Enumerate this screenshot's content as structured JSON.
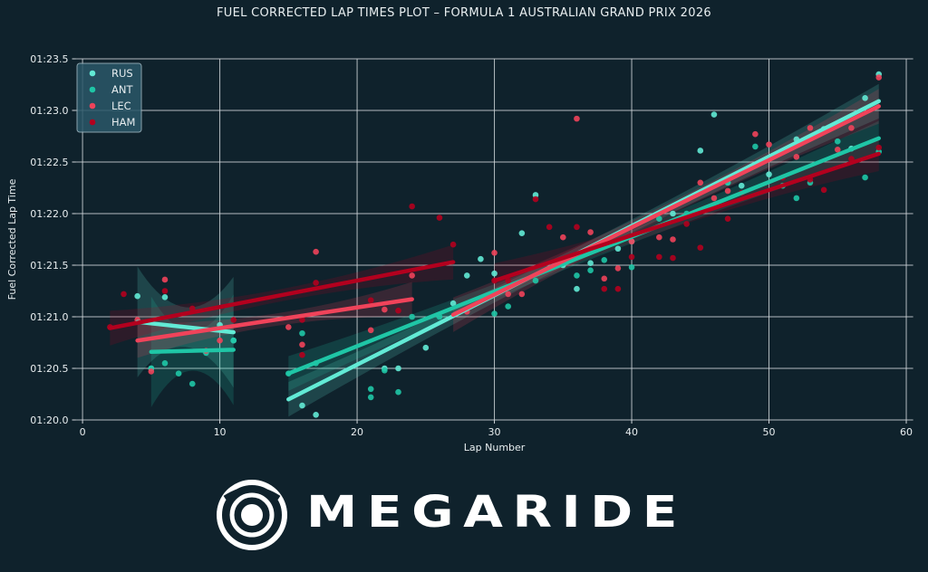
{
  "chart_data": {
    "type": "scatter",
    "title": "FUEL CORRECTED LAP TIMES PLOT – FORMULA 1 AUSTRALIAN GRAND PRIX 2026",
    "xlabel": "Lap Number",
    "ylabel": "Fuel Corrected Lap Time",
    "xlim": [
      -0.5,
      60.5
    ],
    "ylim": [
      80.0,
      83.5
    ],
    "xticks": [
      0,
      10,
      20,
      30,
      40,
      50,
      60
    ],
    "yticks": [
      80.0,
      80.5,
      81.0,
      81.5,
      82.0,
      82.5,
      83.0,
      83.5
    ],
    "ytick_labels": [
      "01:20.0",
      "01:20.5",
      "01:21.0",
      "01:21.5",
      "01:22.0",
      "01:22.5",
      "01:23.0",
      "01:23.5"
    ],
    "grid": true,
    "legend_position": "top-left",
    "series": [
      {
        "name": "RUS",
        "color": "#62ead5",
        "points": [
          [
            4,
            81.2
          ],
          [
            6,
            81.19
          ],
          [
            5,
            80.5
          ],
          [
            10,
            80.92
          ],
          [
            11,
            80.77
          ],
          [
            16,
            80.14
          ],
          [
            17,
            80.05
          ],
          [
            22,
            80.5
          ],
          [
            23,
            80.5
          ],
          [
            25,
            80.7
          ],
          [
            27,
            81.13
          ],
          [
            28,
            81.4
          ],
          [
            29,
            81.56
          ],
          [
            30,
            81.42
          ],
          [
            32,
            81.81
          ],
          [
            33,
            82.18
          ],
          [
            35,
            81.5
          ],
          [
            36,
            81.27
          ],
          [
            37,
            81.52
          ],
          [
            39,
            81.66
          ],
          [
            40,
            81.73
          ],
          [
            43,
            82.0
          ],
          [
            45,
            82.61
          ],
          [
            46,
            82.96
          ],
          [
            47,
            82.3
          ],
          [
            48,
            82.27
          ],
          [
            50,
            82.38
          ],
          [
            52,
            82.72
          ],
          [
            54,
            82.82
          ],
          [
            56,
            82.63
          ],
          [
            57,
            83.12
          ],
          [
            58,
            83.35
          ]
        ],
        "trend": [
          [
            [
              4,
              80.95
            ],
            [
              11,
              80.85
            ]
          ],
          [
            [
              15,
              80.2
            ],
            [
              58,
              83.09
            ]
          ]
        ]
      },
      {
        "name": "ANT",
        "color": "#1fc6a6",
        "points": [
          [
            5,
            80.5
          ],
          [
            6,
            80.55
          ],
          [
            7,
            80.45
          ],
          [
            8,
            80.35
          ],
          [
            9,
            80.65
          ],
          [
            11,
            80.77
          ],
          [
            15,
            80.45
          ],
          [
            16,
            80.84
          ],
          [
            17,
            80.55
          ],
          [
            21,
            80.3
          ],
          [
            21,
            80.22
          ],
          [
            22,
            80.48
          ],
          [
            23,
            80.27
          ],
          [
            24,
            81.0
          ],
          [
            26,
            81.0
          ],
          [
            30,
            81.03
          ],
          [
            31,
            81.1
          ],
          [
            33,
            81.35
          ],
          [
            36,
            81.4
          ],
          [
            37,
            81.45
          ],
          [
            38,
            81.55
          ],
          [
            40,
            81.48
          ],
          [
            42,
            81.95
          ],
          [
            44,
            82.0
          ],
          [
            47,
            82.3
          ],
          [
            49,
            82.65
          ],
          [
            51,
            82.27
          ],
          [
            52,
            82.15
          ],
          [
            53,
            82.3
          ],
          [
            55,
            82.7
          ],
          [
            57,
            82.35
          ],
          [
            58,
            82.6
          ]
        ],
        "trend": [
          [
            [
              5,
              80.66
            ],
            [
              11,
              80.68
            ]
          ],
          [
            [
              15,
              80.45
            ],
            [
              58,
              82.73
            ]
          ]
        ]
      },
      {
        "name": "LEC",
        "color": "#f0435a",
        "points": [
          [
            5,
            80.47
          ],
          [
            6,
            81.36
          ],
          [
            4,
            80.97
          ],
          [
            9,
            80.67
          ],
          [
            10,
            80.77
          ],
          [
            15,
            80.9
          ],
          [
            16,
            80.73
          ],
          [
            17,
            81.63
          ],
          [
            21,
            80.87
          ],
          [
            22,
            81.07
          ],
          [
            24,
            81.4
          ],
          [
            28,
            81.05
          ],
          [
            30,
            81.62
          ],
          [
            31,
            81.22
          ],
          [
            32,
            81.22
          ],
          [
            35,
            81.77
          ],
          [
            36,
            82.92
          ],
          [
            37,
            81.82
          ],
          [
            38,
            81.37
          ],
          [
            39,
            81.47
          ],
          [
            40,
            81.73
          ],
          [
            42,
            81.77
          ],
          [
            43,
            81.75
          ],
          [
            45,
            82.3
          ],
          [
            46,
            82.15
          ],
          [
            47,
            82.22
          ],
          [
            49,
            82.77
          ],
          [
            50,
            82.67
          ],
          [
            52,
            82.55
          ],
          [
            53,
            82.83
          ],
          [
            55,
            82.62
          ],
          [
            56,
            82.83
          ],
          [
            58,
            83.32
          ]
        ],
        "trend": [
          [
            [
              4,
              80.77
            ],
            [
              24,
              81.17
            ]
          ],
          [
            [
              27,
              81.02
            ],
            [
              58,
              83.04
            ]
          ]
        ]
      },
      {
        "name": "HAM",
        "color": "#b3001e",
        "points": [
          [
            2,
            80.9
          ],
          [
            3,
            81.22
          ],
          [
            6,
            81.25
          ],
          [
            8,
            81.08
          ],
          [
            11,
            80.97
          ],
          [
            16,
            80.97
          ],
          [
            16,
            80.63
          ],
          [
            17,
            81.33
          ],
          [
            21,
            81.16
          ],
          [
            23,
            81.06
          ],
          [
            24,
            82.07
          ],
          [
            26,
            81.96
          ],
          [
            27,
            81.7
          ],
          [
            30,
            81.35
          ],
          [
            31,
            81.35
          ],
          [
            33,
            82.14
          ],
          [
            34,
            81.87
          ],
          [
            36,
            81.87
          ],
          [
            38,
            81.27
          ],
          [
            39,
            81.27
          ],
          [
            40,
            81.58
          ],
          [
            42,
            81.58
          ],
          [
            43,
            81.57
          ],
          [
            44,
            81.9
          ],
          [
            45,
            81.67
          ],
          [
            47,
            81.95
          ],
          [
            48,
            82.2
          ],
          [
            50,
            82.53
          ],
          [
            51,
            82.35
          ],
          [
            53,
            82.33
          ],
          [
            54,
            82.23
          ],
          [
            56,
            82.53
          ],
          [
            58,
            82.64
          ]
        ],
        "trend": [
          [
            [
              2,
              80.89
            ],
            [
              27,
              81.53
            ]
          ],
          [
            [
              30,
              81.35
            ],
            [
              58,
              82.58
            ]
          ]
        ]
      }
    ]
  },
  "logo": {
    "text": "MEGARIDE"
  }
}
